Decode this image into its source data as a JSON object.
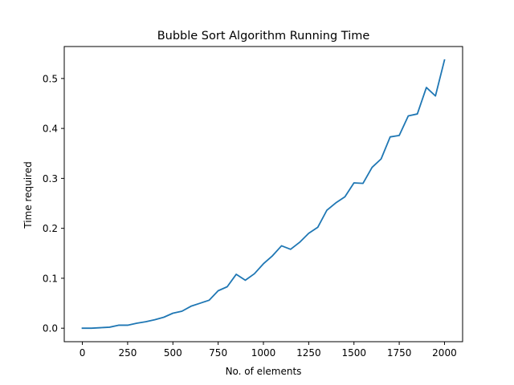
{
  "chart_data": {
    "type": "line",
    "title": "Bubble Sort Algorithm Running Time",
    "xlabel": "No. of elements",
    "ylabel": "Time required",
    "xlim": [
      -100,
      2100
    ],
    "ylim": [
      -0.027,
      0.564
    ],
    "xticks": [
      0,
      250,
      500,
      750,
      1000,
      1250,
      1500,
      1750,
      2000
    ],
    "xtick_labels": [
      "0",
      "250",
      "500",
      "750",
      "1000",
      "1250",
      "1500",
      "1750",
      "2000"
    ],
    "yticks": [
      0.0,
      0.1,
      0.2,
      0.3,
      0.4,
      0.5
    ],
    "ytick_labels": [
      "0.0",
      "0.1",
      "0.2",
      "0.3",
      "0.4",
      "0.5"
    ],
    "grid": false,
    "color": "#1f77b4",
    "series": [
      {
        "x": [
          0,
          50,
          100,
          150,
          200,
          250,
          300,
          350,
          400,
          450,
          500,
          550,
          600,
          650,
          700,
          750,
          800,
          850,
          900,
          950,
          1000,
          1050,
          1100,
          1150,
          1200,
          1250,
          1300,
          1350,
          1400,
          1450,
          1500,
          1550,
          1600,
          1650,
          1700,
          1750,
          1800,
          1850,
          1900,
          1950,
          2000
        ],
        "values": [
          0.0,
          0.0,
          0.001,
          0.002,
          0.006,
          0.006,
          0.01,
          0.013,
          0.017,
          0.022,
          0.03,
          0.034,
          0.044,
          0.05,
          0.056,
          0.075,
          0.083,
          0.108,
          0.096,
          0.109,
          0.129,
          0.145,
          0.165,
          0.158,
          0.172,
          0.19,
          0.202,
          0.236,
          0.251,
          0.263,
          0.291,
          0.29,
          0.322,
          0.339,
          0.383,
          0.386,
          0.425,
          0.429,
          0.482,
          0.465,
          0.537
        ]
      }
    ]
  }
}
